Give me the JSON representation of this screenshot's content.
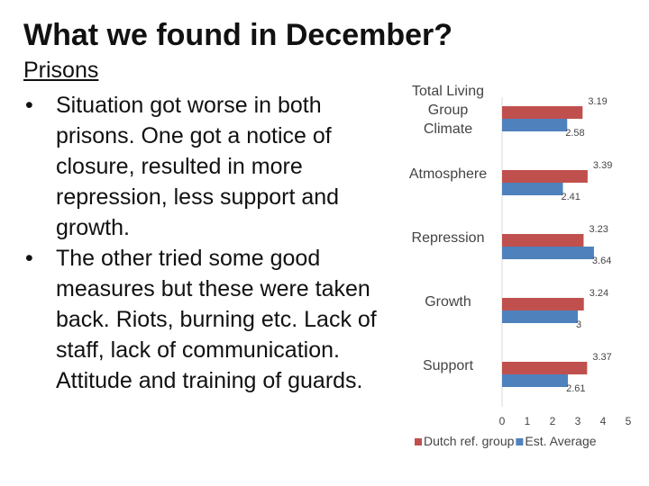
{
  "slide": {
    "title": "What we found in December?",
    "section": "Prisons",
    "bullets": [
      "Situation got worse in both prisons.  One got a notice of closure, resulted in more repression, less support and growth.",
      "The other tried some good measures but these were taken back. Riots, burning etc. Lack of staff, lack of communication. Attitude and training of guards."
    ],
    "bullet_symbol": "•"
  },
  "chart_data": {
    "type": "bar",
    "orientation": "horizontal",
    "categories": [
      "Total Living Group Climate",
      "Atmosphere",
      "Repression",
      "Growth",
      "Support"
    ],
    "series": [
      {
        "name": "Dutch ref. group",
        "color": "#c0504d",
        "values": [
          3.19,
          3.39,
          3.23,
          3.24,
          3.37
        ],
        "labels": [
          "3.19",
          "3.39",
          "3.23",
          "3.24",
          "3.37"
        ]
      },
      {
        "name": "Est. Average",
        "color": "#4f81bd",
        "values": [
          2.58,
          2.41,
          3.64,
          3,
          2.61
        ],
        "labels": [
          "2.58",
          "2.41",
          "3.64",
          "3",
          "2.61"
        ]
      }
    ],
    "xlim": [
      0,
      5
    ],
    "xticks": [
      "0",
      "1",
      "2",
      "3",
      "4",
      "5"
    ],
    "legend_position": "bottom",
    "grid": false
  }
}
